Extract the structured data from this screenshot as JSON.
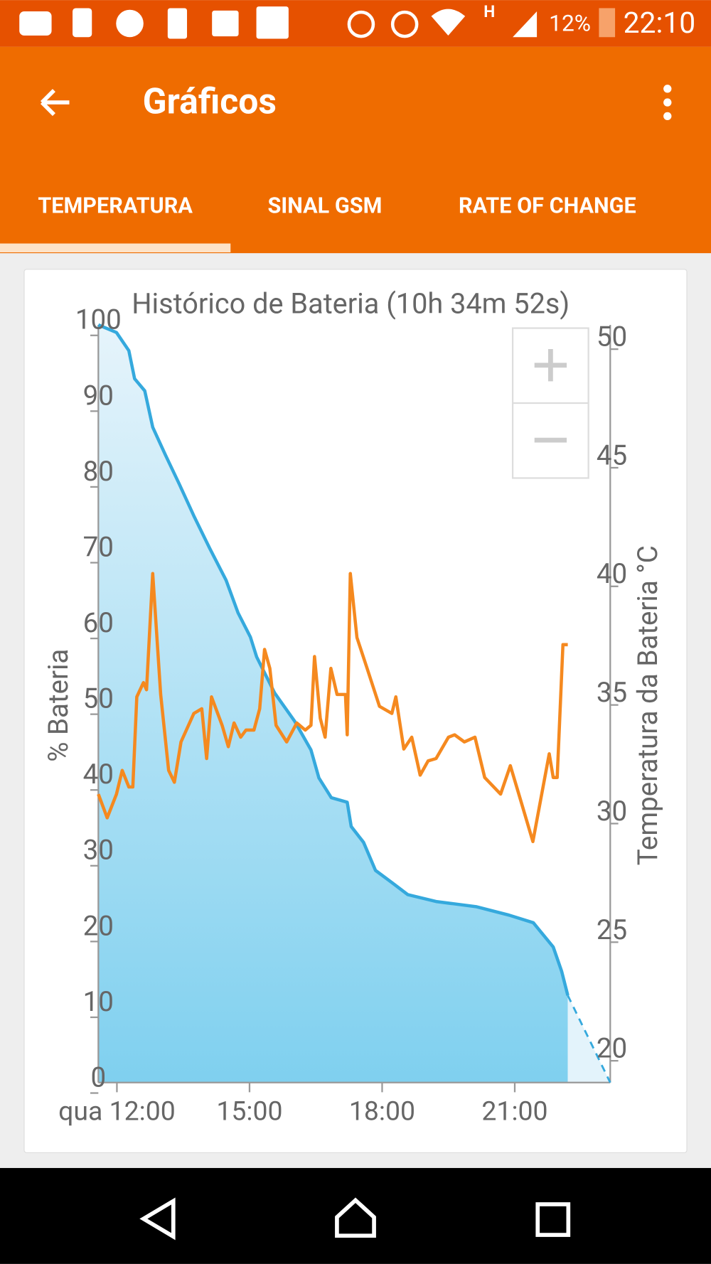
{
  "status_bar": {
    "network": "H",
    "battery": "12%",
    "time": "22:10"
  },
  "app_bar": {
    "title": "Gráficos"
  },
  "tabs": [
    "TEMPERATURA",
    "SINAL GSM",
    "RATE OF CHANGE"
  ],
  "chart_data": {
    "type": "line",
    "title": "Histórico de Bateria (10h 34m 52s)",
    "ylabel": "% Bateria",
    "y2label": "Temperatura da Bateria °C",
    "xlim": [
      11.58,
      23.16
    ],
    "xticks": [
      {
        "value": 12,
        "label": "qua 12:00"
      },
      {
        "value": 15,
        "label": "15:00"
      },
      {
        "value": 18,
        "label": "18:00"
      },
      {
        "value": 21,
        "label": "21:00"
      }
    ],
    "ylim": [
      0,
      100
    ],
    "yticks": [
      0,
      10,
      20,
      30,
      40,
      50,
      60,
      70,
      80,
      90,
      100
    ],
    "y2lim": [
      18.64,
      50.58
    ],
    "y2ticks": [
      20,
      25,
      30,
      35,
      40,
      45,
      50
    ],
    "grid": false,
    "series": [
      {
        "color": "#35a9dd",
        "fill": true,
        "x": [
          11.58,
          11.99,
          12.27,
          12.4,
          12.63,
          12.81,
          13.1,
          13.41,
          13.74,
          14.1,
          14.47,
          14.74,
          15.02,
          15.16,
          15.57,
          16.02,
          16.39,
          16.57,
          16.85,
          17.21,
          17.3,
          17.58,
          17.85,
          18.22,
          18.58,
          19.22,
          20.14,
          20.87,
          21.42,
          21.87,
          22.06,
          22.2
        ],
        "values": [
          100,
          99,
          96.6,
          92.9,
          91.3,
          86.5,
          82.8,
          79,
          74.8,
          70.5,
          66.3,
          62,
          58.8,
          56.2,
          51.4,
          47.7,
          43.9,
          40.2,
          37.6,
          37,
          33.8,
          31.7,
          28,
          26.4,
          24.8,
          23.9,
          23.2,
          22.1,
          21.1,
          17.9,
          14.7,
          11.5
        ]
      },
      {
        "color": "#35a9dd",
        "fill": true,
        "dashed": true,
        "x": [
          22.2,
          23.16
        ],
        "values": [
          11.5,
          0
        ]
      },
      {
        "color": "#f5891f",
        "axis": "y2",
        "x": [
          11.58,
          11.78,
          11.99,
          12.12,
          12.27,
          12.36,
          12.45,
          12.6,
          12.67,
          12.81,
          12.99,
          13.17,
          13.3,
          13.45,
          13.74,
          13.92,
          14.03,
          14.14,
          14.38,
          14.52,
          14.65,
          14.8,
          14.92,
          15.1,
          15.23,
          15.34,
          15.46,
          15.6,
          15.84,
          16.07,
          16.26,
          16.39,
          16.47,
          16.6,
          16.71,
          16.84,
          16.98,
          17.17,
          17.21,
          17.28,
          17.43,
          17.66,
          17.94,
          18.22,
          18.31,
          18.49,
          18.67,
          18.86,
          19.04,
          19.22,
          19.5,
          19.64,
          19.86,
          20.1,
          20.32,
          20.68,
          20.9,
          21.14,
          21.41,
          21.56,
          21.78,
          21.87,
          21.96,
          22.09,
          22.2
        ],
        "values": [
          30.8,
          29.8,
          30.8,
          31.8,
          31.1,
          31.1,
          34.9,
          35.5,
          35.2,
          40.1,
          35.0,
          31.8,
          31.3,
          33.0,
          34.2,
          34.4,
          32.3,
          34.9,
          33.7,
          32.8,
          33.8,
          33.2,
          33.5,
          33.5,
          34.4,
          36.9,
          36.1,
          33.7,
          33.0,
          33.8,
          33.5,
          33.7,
          36.6,
          34.0,
          33.2,
          36.1,
          35.0,
          35.0,
          33.3,
          40.1,
          37.4,
          36.1,
          34.5,
          34.2,
          34.9,
          32.7,
          33.2,
          31.6,
          32.2,
          32.3,
          33.2,
          33.3,
          33.0,
          33.2,
          31.5,
          30.8,
          32.0,
          30.5,
          28.8,
          30.3,
          32.5,
          31.5,
          31.5,
          37.1,
          37.1
        ]
      }
    ]
  }
}
